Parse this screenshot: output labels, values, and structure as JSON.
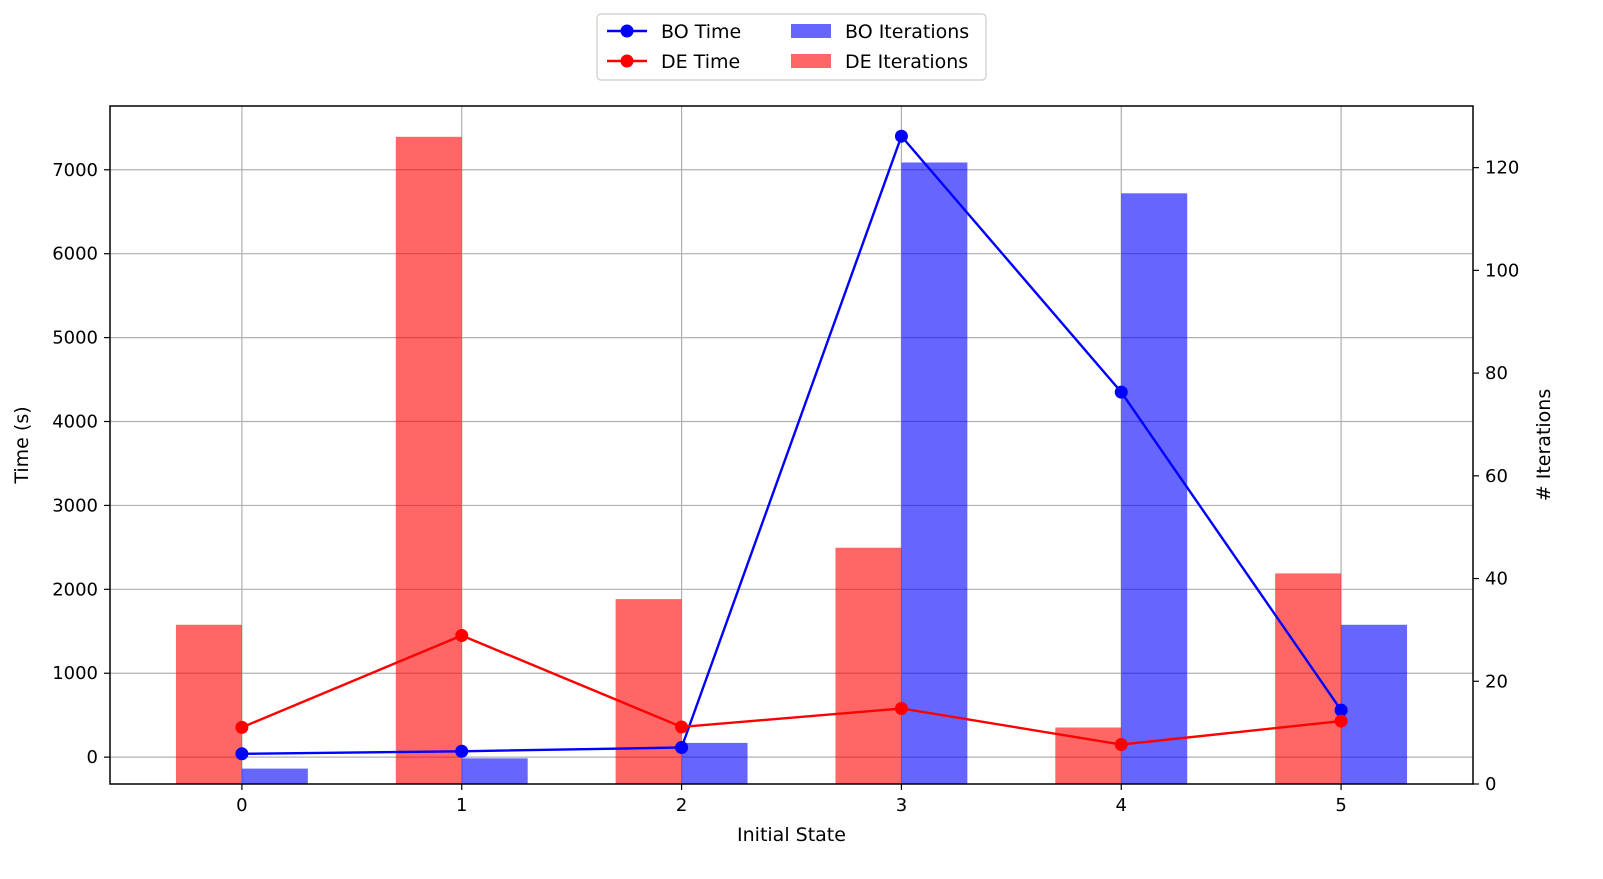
{
  "chart_data": {
    "type": "bar",
    "title": "",
    "xlabel": "Initial State",
    "ylabel": "Time (s)",
    "y2label": "# Iterations",
    "categories": [
      "0",
      "1",
      "2",
      "3",
      "4",
      "5"
    ],
    "xlim": [
      -0.6,
      5.6
    ],
    "ylim": [
      -320,
      7760
    ],
    "y2lim": [
      0,
      132
    ],
    "yticks": [
      0,
      1000,
      2000,
      3000,
      4000,
      5000,
      6000,
      7000
    ],
    "y2ticks": [
      0,
      20,
      40,
      60,
      80,
      100,
      120
    ],
    "grid": true,
    "legend_position": "top-center",
    "bar_series": [
      {
        "name": "DE Iterations",
        "axis": "right",
        "color": "#ff0000",
        "opacity": 0.6,
        "offset": "left",
        "values": [
          31,
          126,
          36,
          46,
          11,
          41
        ]
      },
      {
        "name": "BO Iterations",
        "axis": "right",
        "color": "#0000ff",
        "opacity": 0.6,
        "offset": "right",
        "values": [
          3,
          5,
          8,
          121,
          115,
          31
        ]
      }
    ],
    "line_series": [
      {
        "name": "BO Time",
        "axis": "left",
        "color": "#0000ff",
        "marker": "circle",
        "values": [
          40,
          70,
          115,
          7400,
          4350,
          560
        ]
      },
      {
        "name": "DE Time",
        "axis": "left",
        "color": "#ff0000",
        "marker": "circle",
        "values": [
          355,
          1450,
          360,
          580,
          150,
          430
        ]
      }
    ],
    "legend": [
      "BO Time",
      "DE Time",
      "BO Iterations",
      "DE Iterations"
    ]
  }
}
